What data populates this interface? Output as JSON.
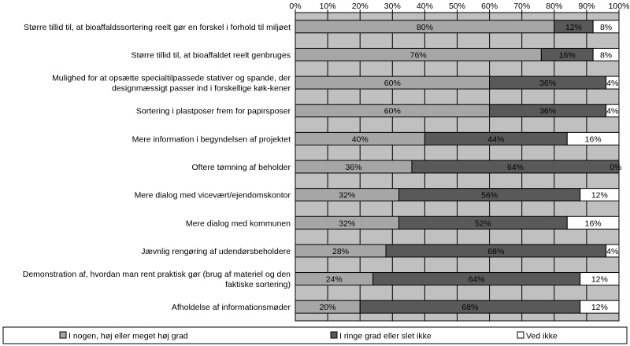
{
  "chart_data": {
    "type": "bar",
    "orientation": "horizontal",
    "stacked": "percent",
    "categories": [
      "Større tillid til, at bioaffaldssortering reelt gør en forskel i forhold til miljøet",
      "Større tillid til, at bioaffaldet reelt genbruges",
      "Mulighed for at opsætte specialtilpassede stativer og spande, der designmæssigt passer ind i forskellige køk-kener",
      "Sortering i plastposer frem for papirsposer",
      "Mere information i begyndelsen af projektet",
      "Oftere tømning af beholder",
      "Mere dialog med vicevært/ejendomskontor",
      "Mere dialog med kommunen",
      "Jævnlig rengøring af udendørsbeholdere",
      "Demonstration af, hvordan man rent praktisk gør (brug af materiel og den faktiske sortering)",
      "Afholdelse af informationsmøder"
    ],
    "category_lines": [
      [
        "Større tillid til, at bioaffaldssortering reelt gør en forskel i forhold til miljøet"
      ],
      [
        "Større tillid til, at bioaffaldet reelt genbruges"
      ],
      [
        "Mulighed for at opsætte specialtilpassede stativer og spande, der",
        "designmæssigt passer ind i forskellige køk-kener"
      ],
      [
        "Sortering i plastposer frem for papirsposer"
      ],
      [
        "Mere information i begyndelsen af projektet"
      ],
      [
        "Oftere tømning af beholder"
      ],
      [
        "Mere dialog med vicevært/ejendomskontor"
      ],
      [
        "Mere dialog med kommunen"
      ],
      [
        "Jævnlig rengøring af udendørsbeholdere"
      ],
      [
        "Demonstration af, hvordan man rent praktisk gør (brug af materiel og den",
        "faktiske sortering)"
      ],
      [
        "Afholdelse af informationsmøder"
      ]
    ],
    "series": [
      {
        "name": "I nogen, høj eller meget høj grad",
        "color": "#a6a6a6",
        "values": [
          80,
          76,
          60,
          60,
          40,
          36,
          32,
          32,
          28,
          24,
          20
        ]
      },
      {
        "name": "I ringe grad eller slet ikke",
        "color": "#595959",
        "values": [
          12,
          16,
          36,
          36,
          44,
          64,
          56,
          52,
          68,
          64,
          68
        ]
      },
      {
        "name": "Ved ikke",
        "color": "#ffffff",
        "values": [
          8,
          8,
          4,
          4,
          16,
          0,
          12,
          16,
          4,
          12,
          12
        ]
      }
    ],
    "xlim": [
      0,
      100
    ],
    "xticks": [
      "0%",
      "10%",
      "20%",
      "30%",
      "40%",
      "50%",
      "60%",
      "70%",
      "80%",
      "90%",
      "100%"
    ],
    "plot_background": "#c0c0c0",
    "grid": "vertical",
    "legend_position": "bottom",
    "data_labels": true,
    "value_suffix": "%"
  }
}
